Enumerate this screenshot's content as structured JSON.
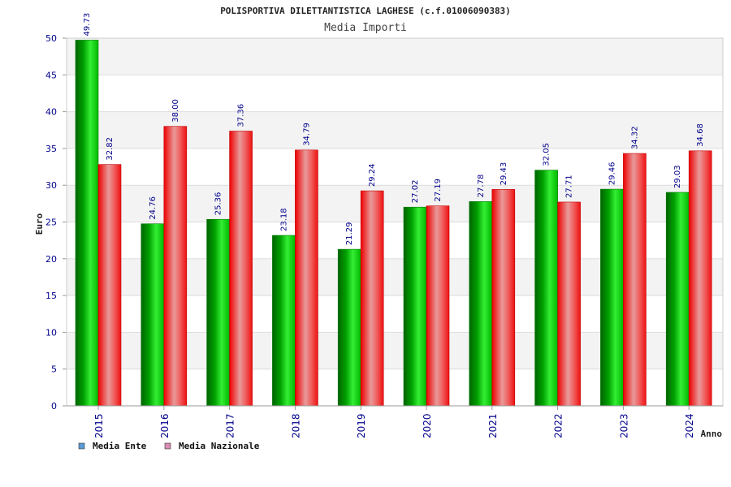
{
  "chart_data": {
    "type": "bar",
    "title": "POLISPORTIVA DILETTANTISTICA LAGHESE (c.f.01006090383)",
    "subtitle": "Media Importi",
    "xlabel": "Anno",
    "ylabel": "Euro",
    "ylim": [
      0,
      50
    ],
    "yticks": [
      0,
      5,
      10,
      15,
      20,
      25,
      30,
      35,
      40,
      45,
      50
    ],
    "categories": [
      "2015",
      "2016",
      "2017",
      "2018",
      "2019",
      "2020",
      "2021",
      "2022",
      "2023",
      "2024"
    ],
    "series": [
      {
        "name": "Media Ente",
        "values": [
          49.73,
          24.76,
          25.36,
          23.18,
          21.29,
          27.02,
          27.78,
          32.05,
          29.46,
          29.03
        ],
        "labels": [
          "49.73",
          "24.76",
          "25.36",
          "23.18",
          "21.29",
          "27.02",
          "27.78",
          "32.05",
          "29.46",
          "29.03"
        ],
        "color": "#00b000",
        "legend_color": "#5b9bd5"
      },
      {
        "name": "Media Nazionale",
        "values": [
          32.82,
          38.0,
          37.36,
          34.79,
          29.24,
          27.19,
          29.43,
          27.71,
          34.32,
          34.68
        ],
        "labels": [
          "32.82",
          "38.00",
          "37.36",
          "34.79",
          "29.24",
          "27.19",
          "29.43",
          "27.71",
          "34.32",
          "34.68"
        ],
        "color": "#ee1111",
        "legend_color": "#d98cb3"
      }
    ],
    "grid": true,
    "legend_position": "bottom-left"
  }
}
